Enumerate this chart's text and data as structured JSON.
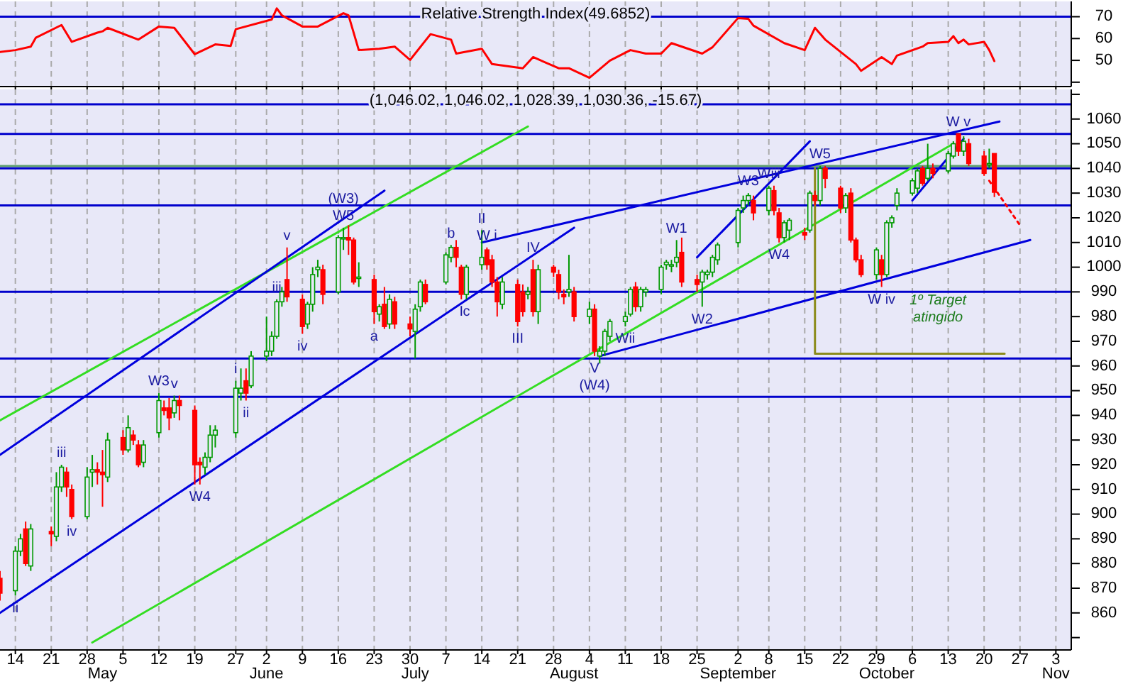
{
  "chart_data": [
    {
      "type": "line",
      "title": "Relative Strength Index(49.6852)",
      "xlim": [
        "--04-11",
        "--11-06"
      ],
      "ylim": [
        38,
        77
      ],
      "yticks": [
        {
          "value": 40,
          "label": null
        },
        50,
        60,
        70
      ],
      "tick_labels": "y",
      "grid": "x",
      "xticks": [
        {
          "value": "--04-14",
          "label": null
        },
        {
          "value": "--04-21",
          "label": null
        },
        {
          "value": "--04-28",
          "label": null
        },
        {
          "value": "--05-05",
          "label": null
        },
        {
          "value": "--05-12",
          "label": null
        },
        {
          "value": "--05-19",
          "label": null
        },
        {
          "value": "--05-27",
          "label": null
        },
        {
          "value": "--06-02",
          "label": null
        },
        {
          "value": "--06-09",
          "label": null
        },
        {
          "value": "--06-16",
          "label": null
        },
        {
          "value": "--06-23",
          "label": null
        },
        {
          "value": "--06-30",
          "label": null
        },
        {
          "value": "--07-07",
          "label": null
        },
        {
          "value": "--07-14",
          "label": null
        },
        {
          "value": "--07-21",
          "label": null
        },
        {
          "value": "--07-28",
          "label": null
        },
        {
          "value": "--08-04",
          "label": null
        },
        {
          "value": "--08-11",
          "label": null
        },
        {
          "value": "--08-18",
          "label": null
        },
        {
          "value": "--08-25",
          "label": null
        },
        {
          "value": "--09-02",
          "label": null
        },
        {
          "value": "--09-08",
          "label": null
        },
        {
          "value": "--09-15",
          "label": null
        },
        {
          "value": "--09-22",
          "label": null
        },
        {
          "value": "--09-29",
          "label": null
        },
        {
          "value": "--10-06",
          "label": null
        },
        {
          "value": "--10-13",
          "label": null
        },
        {
          "value": "--10-20",
          "label": null
        },
        {
          "value": "--10-27",
          "label": null
        },
        {
          "value": "--11-03",
          "label": null
        }
      ],
      "ref_lines": [
        {
          "axis": "y",
          "value": 70,
          "color": "#0000cc"
        }
      ],
      "series": [
        {
          "color": "#ff0000",
          "x": [
            "--04-11",
            "--04-14",
            "--04-17",
            "--04-18",
            "--04-23",
            "--04-25",
            "--04-30",
            "--05-01",
            "--05-02",
            "--05-08",
            "--05-12",
            "--05-15",
            "--05-19",
            "--05-23",
            "--05-26",
            "--05-27",
            "--06-03",
            "--06-04",
            "--06-05",
            "--06-09",
            "--06-12",
            "--06-17",
            "--06-18",
            "--06-20",
            "--06-24",
            "--06-27",
            "--06-30",
            "--07-04",
            "--07-08",
            "--07-09",
            "--07-14",
            "--07-16",
            "--07-22",
            "--07-24",
            "--07-29",
            "--07-31",
            "--08-04",
            "--08-08",
            "--08-12",
            "--08-15",
            "--08-18",
            "--08-20",
            "--08-26",
            "--08-28",
            "--09-02",
            "--09-04",
            "--09-05",
            "--09-11",
            "--09-15",
            "--09-17",
            "--09-19",
            "--09-25",
            "--09-26",
            "--09-30",
            "--10-02",
            "--10-03",
            "--10-08",
            "--10-09",
            "--10-13",
            "--10-14",
            "--10-15",
            "--10-16",
            "--10-17",
            "--10-20",
            "--10-21",
            "--10-22"
          ],
          "values": [
            53.8,
            54.7,
            56.3,
            60.4,
            66.2,
            58.5,
            62.7,
            63.3,
            64.9,
            59.5,
            65.5,
            64.9,
            52.8,
            57.3,
            56.6,
            64.3,
            68.7,
            73.8,
            70.6,
            65.5,
            65.5,
            71.6,
            70.6,
            54.7,
            55.3,
            56.3,
            50.2,
            62.0,
            59.5,
            53.1,
            55.3,
            48.3,
            46.4,
            51.5,
            46.4,
            46.4,
            42.0,
            49.9,
            54.7,
            53.1,
            53.1,
            57.9,
            53.1,
            56.0,
            69.4,
            69.0,
            65.9,
            57.9,
            54.7,
            64.9,
            59.5,
            48.3,
            45.2,
            51.5,
            48.3,
            52.2,
            56.3,
            57.9,
            58.5,
            61.1,
            57.9,
            59.5,
            57.3,
            58.5,
            54.7,
            49.69
          ]
        }
      ]
    },
    {
      "type": "candlestick",
      "title": "(1,046.02, 1,046.02, 1,028.39, 1,030.36, -15.67)",
      "xlim": [
        "--04-11",
        "--11-06"
      ],
      "ylim": [
        845,
        1072
      ],
      "grid": "x",
      "colors": [
        "#ff0000",
        "#009900",
        "#009900",
        "#ff0000",
        "#009900",
        "#ff0000",
        "#009900",
        "#009900",
        "#ff0000",
        "#ff0000",
        "#009900",
        "#009900",
        "#ff0000",
        "#ff0000",
        "#009900",
        "#ff0000",
        "#009900",
        "#ff0000",
        "#ff0000",
        "#009900",
        "#009900",
        "#ff0000",
        "#ff0000",
        "#009900",
        "#ff0000",
        "#ff0000",
        "#ff0000",
        "#009900",
        "#009900",
        "#009900",
        "#009900",
        "#009900",
        "#ff0000",
        "#009900",
        "#009900",
        "#009900",
        "#009900",
        "#009900",
        "#ff0000",
        "#ff0000",
        "#009900",
        "#009900",
        "#009900",
        "#ff0000",
        "#009900",
        "#009900",
        "#ff0000",
        "#ff0000",
        "#009900",
        "#ff0000",
        "#009900",
        "#ff0000",
        "#009900",
        "#ff0000",
        "#ff0000",
        "#009900",
        "#009900",
        "#ff0000",
        "#009900",
        "#009900",
        "#ff0000",
        "#ff0000",
        "#009900",
        "#009900",
        "#ff0000",
        "#ff0000",
        "#ff0000",
        "#009900",
        "#ff0000",
        "#ff0000",
        "#009900",
        "#ff0000",
        "#009900",
        "#ff0000",
        "#ff0000",
        "#ff0000",
        "#009900",
        "#ff0000",
        "#009900",
        "#ff0000",
        "#009900",
        "#009900",
        "#009900",
        "#009900",
        "#009900",
        "#ff0000",
        "#009900",
        "#009900",
        "#009900",
        "#009900",
        "#009900",
        "#009900",
        "#ff0000",
        "#ff0000",
        "#009900",
        "#009900",
        "#009900",
        "#009900",
        "#009900",
        "#009900",
        "#009900",
        "#ff0000",
        "#009900",
        "#ff0000",
        "#ff0000",
        "#009900",
        "#009900",
        "#ff0000",
        "#009900",
        "#ff0000",
        "#009900",
        "#ff0000",
        "#ff0000",
        "#009900",
        "#ff0000",
        "#ff0000",
        "#ff0000",
        "#009900",
        "#ff0000",
        "#009900",
        "#009900",
        "#009900",
        "#009900",
        "#009900",
        "#ff0000",
        "#009900",
        "#ff0000",
        "#009900",
        "#009900",
        "#ff0000",
        "#009900",
        "#ff0000",
        "#ff0000",
        "#009900",
        "#ff0000"
      ],
      "x2lim": [
        "--04-11",
        "--11-06"
      ],
      "x2ticks": [
        {
          "value": "--05-01",
          "label": "May"
        },
        {
          "value": "--06-02",
          "label": "June"
        },
        {
          "value": "--07-01",
          "label": "July"
        },
        {
          "value": "--08-01",
          "label": "August"
        },
        {
          "value": "--09-02",
          "label": "September"
        },
        {
          "value": "--10-01",
          "label": "October"
        },
        {
          "value": "--11-03",
          "label": "Nov"
        }
      ],
      "yticks": [
        {
          "value": 850,
          "label": null
        },
        860,
        870,
        880,
        890,
        900,
        910,
        920,
        930,
        940,
        950,
        960,
        970,
        980,
        990,
        1000,
        1010,
        1020,
        1030,
        1040,
        1050,
        1060,
        {
          "value": 1070,
          "label": null
        }
      ],
      "xticks": [
        {
          "value": "--04-14",
          "label": "14"
        },
        {
          "value": "--04-21",
          "label": "21"
        },
        {
          "value": "--04-28",
          "label": "28"
        },
        {
          "value": "--05-05",
          "label": "5"
        },
        {
          "value": "--05-12",
          "label": "12"
        },
        {
          "value": "--05-19",
          "label": "19"
        },
        {
          "value": "--05-27",
          "label": "27"
        },
        {
          "value": "--06-02",
          "label": "2"
        },
        {
          "value": "--06-09",
          "label": "9"
        },
        {
          "value": "--06-16",
          "label": "16"
        },
        {
          "value": "--06-23",
          "label": "23"
        },
        {
          "value": "--06-30",
          "label": "30"
        },
        {
          "value": "--07-07",
          "label": "7"
        },
        {
          "value": "--07-14",
          "label": "14"
        },
        {
          "value": "--07-21",
          "label": "21"
        },
        {
          "value": "--07-28",
          "label": "28"
        },
        {
          "value": "--08-04",
          "label": "4"
        },
        {
          "value": "--08-11",
          "label": "11"
        },
        {
          "value": "--08-18",
          "label": "18"
        },
        {
          "value": "--08-25",
          "label": "25"
        },
        {
          "value": "--09-02",
          "label": "2"
        },
        {
          "value": "--09-08",
          "label": "8"
        },
        {
          "value": "--09-15",
          "label": "15"
        },
        {
          "value": "--09-22",
          "label": "22"
        },
        {
          "value": "--09-29",
          "label": "29"
        },
        {
          "value": "--10-06",
          "label": "6"
        },
        {
          "value": "--10-13",
          "label": "13"
        },
        {
          "value": "--10-20",
          "label": "20"
        },
        {
          "value": "--10-27",
          "label": "27"
        },
        {
          "value": "--11-03",
          "label": "3"
        }
      ],
      "ref_lines": [
        {
          "axis": "y",
          "value": 1066,
          "color": "#0000cc"
        },
        {
          "axis": "y",
          "value": 1054,
          "color": "#0000cc"
        },
        {
          "axis": "y",
          "value": 1041,
          "color": "#5f9f6f"
        },
        {
          "axis": "y",
          "value": 1040,
          "color": "#0000cc"
        },
        {
          "axis": "y",
          "value": 1025,
          "color": "#0000cc"
        },
        {
          "axis": "y",
          "value": 990,
          "color": "#0000cc"
        },
        {
          "axis": "y",
          "value": 963,
          "color": "#0000cc"
        },
        {
          "axis": "y",
          "value": 947.5,
          "color": "#0000cc"
        }
      ],
      "x": [
        "--04-11",
        "--04-14",
        "--04-15",
        "--04-16",
        "--04-17",
        "--04-21",
        "--04-22",
        "--04-23",
        "--04-24",
        "--04-25",
        "--04-28",
        "--04-29",
        "--04-30",
        "--05-01",
        "--05-02",
        "--05-05",
        "--05-06",
        "--05-07",
        "--05-08",
        "--05-09",
        "--05-12",
        "--05-13",
        "--05-14",
        "--05-15",
        "--05-16",
        "--05-19",
        "--05-20",
        "--05-21",
        "--05-22",
        "--05-23",
        "--05-27",
        "--05-28",
        "--05-29",
        "--05-30",
        "--06-02",
        "--06-03",
        "--06-04",
        "--06-05",
        "--06-06",
        "--06-09",
        "--06-10",
        "--06-11",
        "--06-12",
        "--06-13",
        "--06-16",
        "--06-17",
        "--06-18",
        "--06-19",
        "--06-20",
        "--06-23",
        "--06-24",
        "--06-25",
        "--06-26",
        "--06-27",
        "--06-30",
        "--07-01",
        "--07-02",
        "--07-03",
        "--07-07",
        "--07-08",
        "--07-09",
        "--07-10",
        "--07-11",
        "--07-14",
        "--07-15",
        "--07-16",
        "--07-17",
        "--07-18",
        "--07-21",
        "--07-22",
        "--07-23",
        "--07-24",
        "--07-25",
        "--07-28",
        "--07-29",
        "--07-30",
        "--07-31",
        "--08-01",
        "--08-04",
        "--08-05",
        "--08-06",
        "--08-07",
        "--08-08",
        "--08-11",
        "--08-12",
        "--08-13",
        "--08-14",
        "--08-15",
        "--08-18",
        "--08-19",
        "--08-20",
        "--08-21",
        "--08-22",
        "--08-25",
        "--08-26",
        "--08-27",
        "--08-28",
        "--08-29",
        "--09-02",
        "--09-03",
        "--09-04",
        "--09-05",
        "--09-08",
        "--09-09",
        "--09-10",
        "--09-11",
        "--09-12",
        "--09-15",
        "--09-16",
        "--09-17",
        "--09-18",
        "--09-19",
        "--09-22",
        "--09-23",
        "--09-24",
        "--09-25",
        "--09-26",
        "--09-29",
        "--09-30",
        "--10-01",
        "--10-02",
        "--10-03",
        "--10-06",
        "--10-07",
        "--10-08",
        "--10-09",
        "--10-10",
        "--10-13",
        "--10-14",
        "--10-15",
        "--10-16",
        "--10-17",
        "--10-20",
        "--10-21",
        "--10-22"
      ],
      "ohlc": [
        [
          874,
          877,
          865,
          868
        ],
        [
          869,
          887,
          867,
          885
        ],
        [
          885,
          892,
          883,
          890
        ],
        [
          894,
          897,
          879,
          880
        ],
        [
          879,
          896,
          877,
          894
        ],
        [
          893,
          895,
          887,
          892
        ],
        [
          891,
          917,
          889,
          911
        ],
        [
          911,
          920,
          909,
          919
        ],
        [
          917,
          919,
          907,
          911
        ],
        [
          910,
          912,
          898,
          899
        ],
        [
          899,
          919,
          898,
          915
        ],
        [
          917,
          924,
          911,
          918
        ],
        [
          918,
          921,
          912,
          917
        ],
        [
          917,
          926,
          903,
          916
        ],
        [
          915,
          933,
          913,
          930
        ],
        [
          931,
          934,
          924,
          926
        ],
        [
          926,
          940,
          925,
          935
        ],
        [
          932,
          934,
          928,
          930
        ],
        [
          928,
          930,
          919,
          920
        ],
        [
          921,
          930,
          919,
          928
        ],
        [
          933,
          949,
          931,
          946
        ],
        [
          943,
          946,
          940,
          942
        ],
        [
          943,
          947,
          934,
          939
        ],
        [
          941,
          948,
          939,
          946
        ],
        [
          946,
          948,
          938,
          944
        ],
        [
          942,
          944,
          912,
          920
        ],
        [
          921,
          923,
          912,
          920
        ],
        [
          919,
          925,
          916,
          923
        ],
        [
          923,
          936,
          921,
          932
        ],
        [
          932,
          936,
          927,
          934
        ],
        [
          933,
          954,
          931,
          951
        ],
        [
          949,
          959,
          946,
          951
        ],
        [
          954,
          959,
          946,
          949
        ],
        [
          952,
          966,
          951,
          964
        ],
        [
          964,
          980,
          962,
          966
        ],
        [
          966,
          974,
          964,
          972
        ],
        [
          972,
          987,
          971,
          986
        ],
        [
          986,
          992,
          984,
          990
        ],
        [
          995,
          1008,
          986,
          988
        ],
        [
          987,
          989,
          973,
          976
        ],
        [
          977,
          986,
          975,
          985
        ],
        [
          985,
          1000,
          982,
          997
        ],
        [
          999,
          1003,
          996,
          1000
        ],
        [
          999,
          1001,
          985,
          989
        ],
        [
          990,
          1013,
          989,
          1012
        ],
        [
          1012,
          1016,
          1007,
          1012
        ],
        [
          1012,
          1017,
          1005,
          1011
        ],
        [
          1011,
          1012,
          993,
          994
        ],
        [
          996,
          1002,
          992,
          996
        ],
        [
          995,
          997,
          977,
          982
        ],
        [
          981,
          985,
          978,
          984
        ],
        [
          985,
          992,
          975,
          976
        ],
        [
          977,
          989,
          975,
          987
        ],
        [
          986,
          988,
          975,
          977
        ],
        [
          977,
          980,
          972,
          975
        ],
        [
          974,
          985,
          963,
          983
        ],
        [
          984,
          995,
          982,
          994
        ],
        [
          993,
          995,
          985,
          986
        ],
        [
          994,
          1006,
          993,
          1005
        ],
        [
          1004,
          1009,
          1002,
          1008
        ],
        [
          1008,
          1011,
          1000,
          1004
        ],
        [
          1000,
          1001,
          987,
          989
        ],
        [
          989,
          1001,
          987,
          1000
        ],
        [
          1001,
          1015,
          999,
          1004
        ],
        [
          1007,
          1008,
          999,
          1001
        ],
        [
          1003,
          1005,
          992,
          994
        ],
        [
          994,
          996,
          980,
          986
        ],
        [
          985,
          996,
          983,
          994
        ],
        [
          993,
          995,
          976,
          978
        ],
        [
          990,
          993,
          980,
          982
        ],
        [
          989,
          992,
          987,
          990
        ],
        [
          999,
          1003,
          980,
          982
        ],
        [
          982,
          1001,
          977,
          999
        ],
        [
          1000,
          1001,
          996,
          998
        ],
        [
          997,
          999,
          987,
          990
        ],
        [
          989,
          991,
          985,
          988
        ],
        [
          990,
          1005,
          988,
          991
        ],
        [
          990,
          992,
          978,
          980
        ],
        [
          980,
          986,
          977,
          983
        ],
        [
          983,
          985,
          964,
          966
        ],
        [
          964,
          968,
          961,
          966
        ],
        [
          966,
          975,
          964,
          974
        ],
        [
          972,
          979,
          970,
          978
        ],
        [
          978,
          982,
          976,
          980
        ],
        [
          981,
          992,
          980,
          991
        ],
        [
          992,
          994,
          982,
          984
        ],
        [
          984,
          992,
          982,
          991
        ],
        [
          990,
          992,
          988,
          991
        ],
        [
          991,
          1001,
          989,
          1000
        ],
        [
          1001,
          1003,
          999,
          1002
        ],
        [
          1001,
          1003,
          998,
          1001
        ],
        [
          1002,
          1011,
          1000,
          1004
        ],
        [
          1006,
          1012,
          992,
          994
        ],
        [
          995,
          997,
          990,
          993
        ],
        [
          994,
          999,
          984,
          998
        ],
        [
          997,
          999,
          995,
          998
        ],
        [
          998,
          1005,
          996,
          1004
        ],
        [
          1003,
          1010,
          1001,
          1009
        ],
        [
          1010,
          1024,
          1008,
          1023
        ],
        [
          1024,
          1029,
          1022,
          1027
        ],
        [
          1027,
          1030,
          1025,
          1029
        ],
        [
          1027,
          1029,
          1019,
          1022
        ],
        [
          1023,
          1033,
          1021,
          1032
        ],
        [
          1031,
          1033,
          1021,
          1023
        ],
        [
          1022,
          1024,
          1010,
          1012
        ],
        [
          1012,
          1019,
          1010,
          1018
        ],
        [
          1015,
          1020,
          1011,
          1019
        ],
        [
          1014,
          1016,
          1011,
          1013
        ],
        [
          1015,
          1031,
          1014,
          1030
        ],
        [
          1029,
          1031,
          1025,
          1027
        ],
        [
          1027,
          1041,
          1025,
          1040
        ],
        [
          1040,
          1041,
          1032,
          1036
        ],
        [
          1032,
          1033,
          1022,
          1024
        ],
        [
          1024,
          1030,
          1022,
          1029
        ],
        [
          1030,
          1032,
          1010,
          1011
        ],
        [
          1011,
          1012,
          1002,
          1003
        ],
        [
          1003,
          1005,
          996,
          997
        ],
        [
          997,
          1008,
          995,
          1007
        ],
        [
          1003,
          1005,
          992,
          997
        ],
        [
          997,
          1019,
          996,
          1018
        ],
        [
          1018,
          1021,
          1016,
          1020
        ],
        [
          1025,
          1032,
          1023,
          1030
        ],
        [
          1030,
          1036,
          1029,
          1035
        ],
        [
          1032,
          1040,
          1030,
          1039
        ],
        [
          1040,
          1041,
          1033,
          1034
        ],
        [
          1036,
          1050,
          1035,
          1040
        ],
        [
          1040,
          1042,
          1036,
          1038
        ],
        [
          1039,
          1047,
          1038,
          1046
        ],
        [
          1045,
          1051,
          1044,
          1050
        ],
        [
          1054,
          1054,
          1045,
          1047
        ],
        [
          1047,
          1053,
          1045,
          1051
        ],
        [
          1050,
          1052,
          1041,
          1042
        ],
        [
          1045,
          1047,
          1037,
          1038
        ],
        [
          1042,
          1048,
          1040,
          1042
        ],
        [
          1046.02,
          1046.02,
          1028.39,
          1030.36
        ]
      ],
      "series": [
        {
          "type": "line",
          "color": "#33dd22",
          "x": [
            "--04-11",
            "--07-23"
          ],
          "values": [
            938,
            1057
          ]
        },
        {
          "type": "line",
          "color": "#33dd22",
          "x": [
            "--04-29",
            "--10-14"
          ],
          "values": [
            848,
            1050
          ]
        },
        {
          "type": "line",
          "color": "#0000dd",
          "x": [
            "--04-11",
            "--06-25"
          ],
          "values": [
            924,
            1031
          ]
        },
        {
          "type": "line",
          "color": "#0000dd",
          "x": [
            "--04-11",
            "--08-01"
          ],
          "values": [
            860,
            1016
          ]
        },
        {
          "type": "line",
          "color": "#0000dd",
          "x": [
            "--07-14",
            "--10-23"
          ],
          "values": [
            1010,
            1059
          ]
        },
        {
          "type": "line",
          "color": "#0000dd",
          "x": [
            "--08-06",
            "--10-29"
          ],
          "values": [
            964,
            1011
          ]
        },
        {
          "type": "line",
          "color": "#0000dd",
          "x": [
            "--08-25",
            "--09-16"
          ],
          "values": [
            1004,
            1051
          ]
        },
        {
          "type": "line",
          "color": "#0000dd",
          "x": [
            "--10-06",
            "--10-16"
          ],
          "values": [
            1027,
            1052
          ]
        },
        {
          "type": "line",
          "color": "#ff0000",
          "line_style": "dotted",
          "x": [
            "--10-21",
            "--10-27"
          ],
          "values": [
            1035,
            1017
          ]
        },
        {
          "type": "line",
          "color": "#8b8b1a",
          "x": [
            "--09-17",
            "--09-17",
            "--10-24"
          ],
          "values": [
            1040,
            965,
            965
          ]
        }
      ],
      "annotations": [
        {
          "text": "ii",
          "x": "--04-14",
          "y": 867
        },
        {
          "text": "iii",
          "x": "--04-23",
          "y": 920
        },
        {
          "text": "iv",
          "x": "--04-25",
          "y": 898
        },
        {
          "text": "W3",
          "x": "--05-12",
          "y": 949
        },
        {
          "text": "v",
          "x": "--05-15",
          "y": 948
        },
        {
          "text": "i",
          "x": "--05-27",
          "y": 954
        },
        {
          "text": "ii",
          "x": "--05-29",
          "y": 946
        },
        {
          "text": "W4",
          "x": "--05-20",
          "y": 912
        },
        {
          "text": "iii",
          "x": "--06-04",
          "y": 987
        },
        {
          "text": "iv",
          "x": "--06-09",
          "y": 973
        },
        {
          "text": "v",
          "x": "--06-06",
          "y": 1008
        },
        {
          "text": "W5",
          "x": "--06-17",
          "y": 1016
        },
        {
          "text": "(W3)",
          "x": "--06-17",
          "y": 1016
        },
        {
          "text": "a",
          "x": "--06-23",
          "y": 977
        },
        {
          "text": "b",
          "x": "--07-08",
          "y": 1009
        },
        {
          "text": "II",
          "x": "--07-14",
          "y": 1015
        },
        {
          "text": "W i",
          "x": "--07-15",
          "y": 1008
        },
        {
          "text": "IV",
          "x": "--07-24",
          "y": 1003
        },
        {
          "text": "I",
          "x": "--07-10",
          "y": 987
        },
        {
          "text": "c",
          "x": "--07-11",
          "y": 987
        },
        {
          "text": "III",
          "x": "--07-21",
          "y": 976
        },
        {
          "text": "V",
          "x": "--08-05",
          "y": 964
        },
        {
          "text": "Wii",
          "x": "--08-11",
          "y": 976
        },
        {
          "text": "(W4)",
          "x": "--08-05",
          "y": 964
        },
        {
          "text": "W1",
          "x": "--08-21",
          "y": 1011
        },
        {
          "text": "W2",
          "x": "--08-26",
          "y": 984
        },
        {
          "text": "W3",
          "x": "--09-04",
          "y": 1030
        },
        {
          "text": "Wiii",
          "x": "--09-08",
          "y": 1033
        },
        {
          "text": "W5",
          "x": "--09-18",
          "y": 1041
        },
        {
          "text": "W4",
          "x": "--09-10",
          "y": 1010
        },
        {
          "text": "W iv",
          "x": "--09-30",
          "y": 992
        },
        {
          "text": "1º Target atingido",
          "x": "--10-11",
          "y": 990
        },
        {
          "text": "W v",
          "x": "--10-15",
          "y": 1054
        }
      ]
    }
  ]
}
